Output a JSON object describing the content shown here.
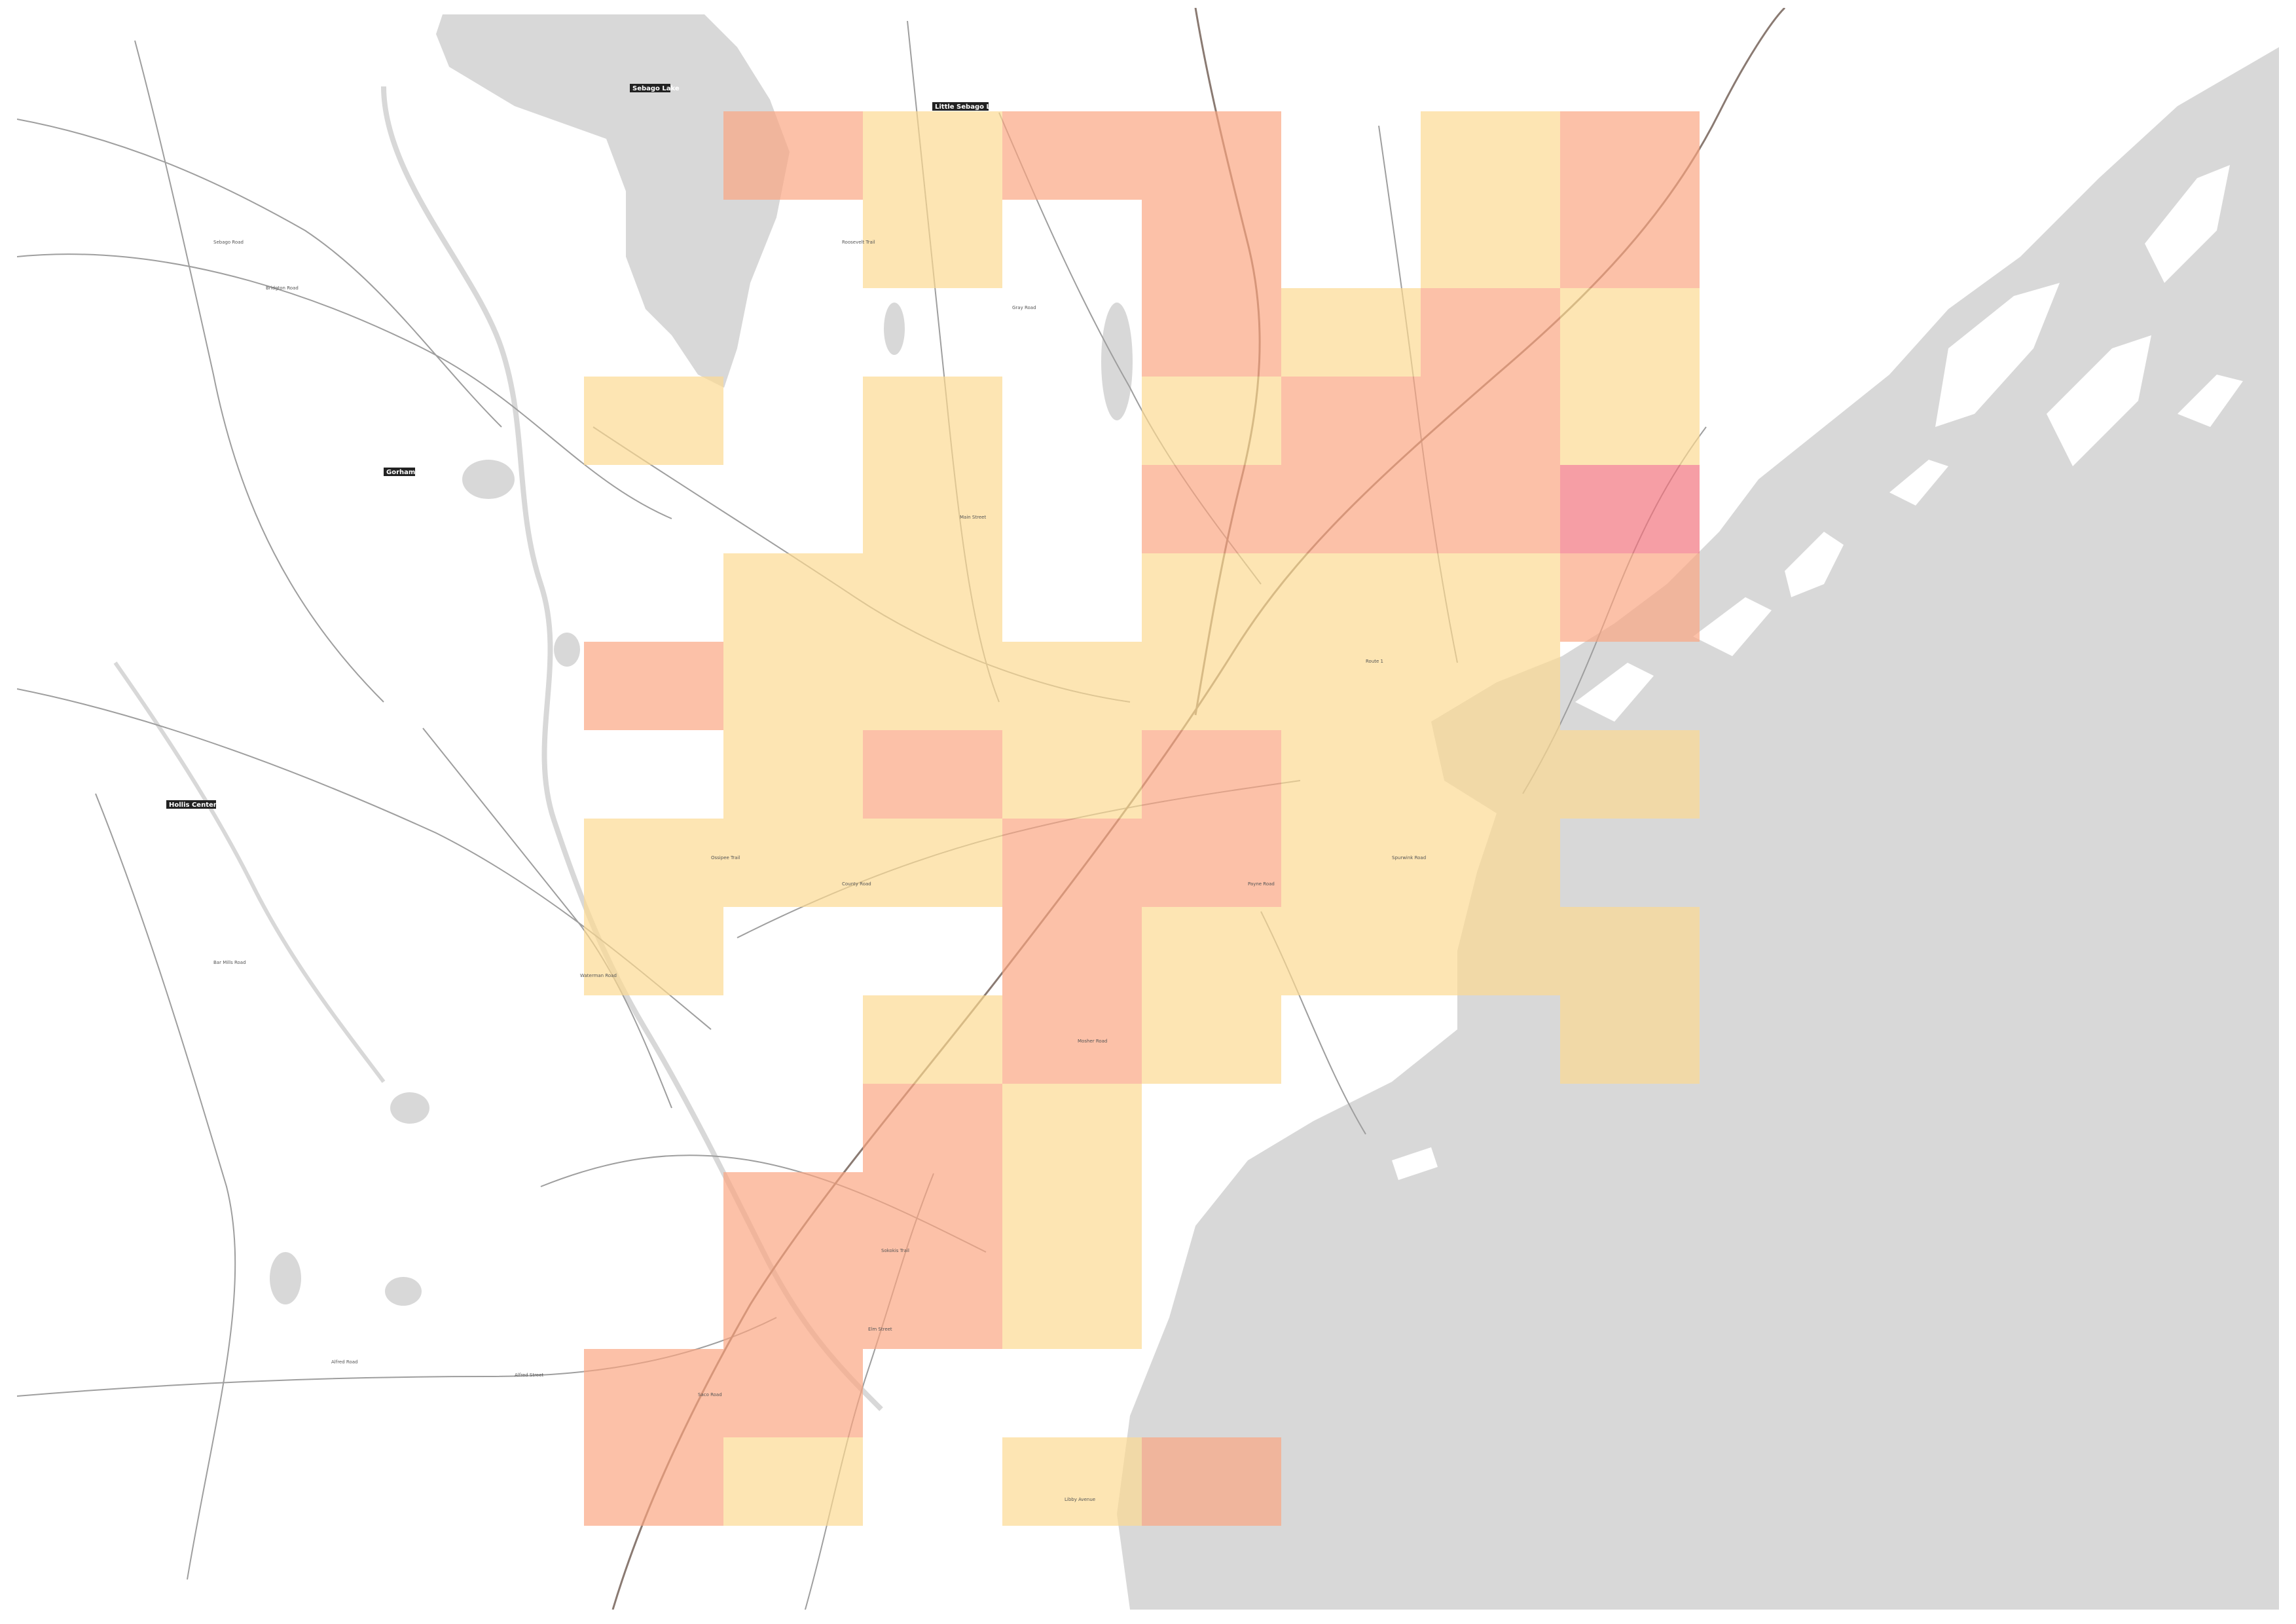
{
  "map": {
    "colors": {
      "background": "#ffffff",
      "water": "#d8d8d8",
      "roads": "#9e9e9e",
      "major_road": "#8a7a72",
      "low": "#fcd98f",
      "medium": "#fba47f",
      "high": "#f2707a",
      "label_bg": "#222222"
    },
    "place_labels": [
      "Sebago Lake",
      "Little Sebago Lake",
      "Gorham",
      "Hollis Center"
    ],
    "road_labels": [
      "Sebago Road",
      "Roosevelt Trail",
      "Gray Road",
      "Main Street",
      "Bridgton Road",
      "Ossipee Trail",
      "County Road",
      "Alfred Road",
      "Alfred Street",
      "Sokokis Trail",
      "Saco Road",
      "Elm Street",
      "Payne Road",
      "Route 1",
      "Spurwink Road",
      "Bar Mills Road",
      "Waterman Road",
      "Mosher Road",
      "Libby Avenue"
    ],
    "grid_cells": [
      {
        "col": 1,
        "row": 0,
        "level": "medium"
      },
      {
        "col": 2,
        "row": 0,
        "level": "low"
      },
      {
        "col": 3,
        "row": 0,
        "level": "medium"
      },
      {
        "col": 4,
        "row": 0,
        "level": "medium"
      },
      {
        "col": 6,
        "row": 0,
        "level": "low"
      },
      {
        "col": 7,
        "row": 0,
        "level": "medium"
      },
      {
        "col": 2,
        "row": 1,
        "level": "low"
      },
      {
        "col": 4,
        "row": 1,
        "level": "medium"
      },
      {
        "col": 6,
        "row": 1,
        "level": "low"
      },
      {
        "col": 7,
        "row": 1,
        "level": "medium"
      },
      {
        "col": 4,
        "row": 2,
        "level": "medium"
      },
      {
        "col": 5,
        "row": 2,
        "level": "low"
      },
      {
        "col": 6,
        "row": 2,
        "level": "medium"
      },
      {
        "col": 7,
        "row": 2,
        "level": "low"
      },
      {
        "col": 0,
        "row": 3,
        "level": "low"
      },
      {
        "col": 2,
        "row": 3,
        "level": "low"
      },
      {
        "col": 4,
        "row": 3,
        "level": "low"
      },
      {
        "col": 5,
        "row": 3,
        "level": "medium"
      },
      {
        "col": 6,
        "row": 3,
        "level": "medium"
      },
      {
        "col": 7,
        "row": 3,
        "level": "low"
      },
      {
        "col": 2,
        "row": 4,
        "level": "low"
      },
      {
        "col": 4,
        "row": 4,
        "level": "medium"
      },
      {
        "col": 5,
        "row": 4,
        "level": "medium"
      },
      {
        "col": 6,
        "row": 4,
        "level": "medium"
      },
      {
        "col": 7,
        "row": 4,
        "level": "high"
      },
      {
        "col": 1,
        "row": 5,
        "level": "low"
      },
      {
        "col": 2,
        "row": 5,
        "level": "low"
      },
      {
        "col": 4,
        "row": 5,
        "level": "low"
      },
      {
        "col": 5,
        "row": 5,
        "level": "low"
      },
      {
        "col": 6,
        "row": 5,
        "level": "low"
      },
      {
        "col": 7,
        "row": 5,
        "level": "medium"
      },
      {
        "col": 0,
        "row": 6,
        "level": "medium"
      },
      {
        "col": 1,
        "row": 6,
        "level": "low"
      },
      {
        "col": 2,
        "row": 6,
        "level": "low"
      },
      {
        "col": 3,
        "row": 6,
        "level": "low"
      },
      {
        "col": 4,
        "row": 6,
        "level": "low"
      },
      {
        "col": 5,
        "row": 6,
        "level": "low"
      },
      {
        "col": 6,
        "row": 6,
        "level": "low"
      },
      {
        "col": 1,
        "row": 7,
        "level": "low"
      },
      {
        "col": 2,
        "row": 7,
        "level": "medium"
      },
      {
        "col": 3,
        "row": 7,
        "level": "low"
      },
      {
        "col": 4,
        "row": 7,
        "level": "medium"
      },
      {
        "col": 5,
        "row": 7,
        "level": "low"
      },
      {
        "col": 6,
        "row": 7,
        "level": "low"
      },
      {
        "col": 7,
        "row": 7,
        "level": "low"
      },
      {
        "col": 0,
        "row": 8,
        "level": "low"
      },
      {
        "col": 1,
        "row": 8,
        "level": "low"
      },
      {
        "col": 2,
        "row": 8,
        "level": "low"
      },
      {
        "col": 3,
        "row": 8,
        "level": "medium"
      },
      {
        "col": 4,
        "row": 8,
        "level": "medium"
      },
      {
        "col": 5,
        "row": 8,
        "level": "low"
      },
      {
        "col": 6,
        "row": 8,
        "level": "low"
      },
      {
        "col": 0,
        "row": 9,
        "level": "low"
      },
      {
        "col": 3,
        "row": 9,
        "level": "medium"
      },
      {
        "col": 4,
        "row": 9,
        "level": "low"
      },
      {
        "col": 5,
        "row": 9,
        "level": "low"
      },
      {
        "col": 6,
        "row": 9,
        "level": "low"
      },
      {
        "col": 7,
        "row": 9,
        "level": "low"
      },
      {
        "col": 2,
        "row": 10,
        "level": "low"
      },
      {
        "col": 3,
        "row": 10,
        "level": "medium"
      },
      {
        "col": 4,
        "row": 10,
        "level": "low"
      },
      {
        "col": 7,
        "row": 10,
        "level": "low"
      },
      {
        "col": 2,
        "row": 11,
        "level": "medium"
      },
      {
        "col": 3,
        "row": 11,
        "level": "low"
      },
      {
        "col": 1,
        "row": 12,
        "level": "medium"
      },
      {
        "col": 2,
        "row": 12,
        "level": "medium"
      },
      {
        "col": 3,
        "row": 12,
        "level": "low"
      },
      {
        "col": 1,
        "row": 13,
        "level": "medium"
      },
      {
        "col": 2,
        "row": 13,
        "level": "medium"
      },
      {
        "col": 3,
        "row": 13,
        "level": "low"
      },
      {
        "col": 0,
        "row": 14,
        "level": "medium"
      },
      {
        "col": 1,
        "row": 14,
        "level": "medium"
      },
      {
        "col": 0,
        "row": 15,
        "level": "medium"
      },
      {
        "col": 1,
        "row": 15,
        "level": "low"
      },
      {
        "col": 3,
        "row": 15,
        "level": "low"
      },
      {
        "col": 4,
        "row": 15,
        "level": "medium"
      }
    ]
  }
}
